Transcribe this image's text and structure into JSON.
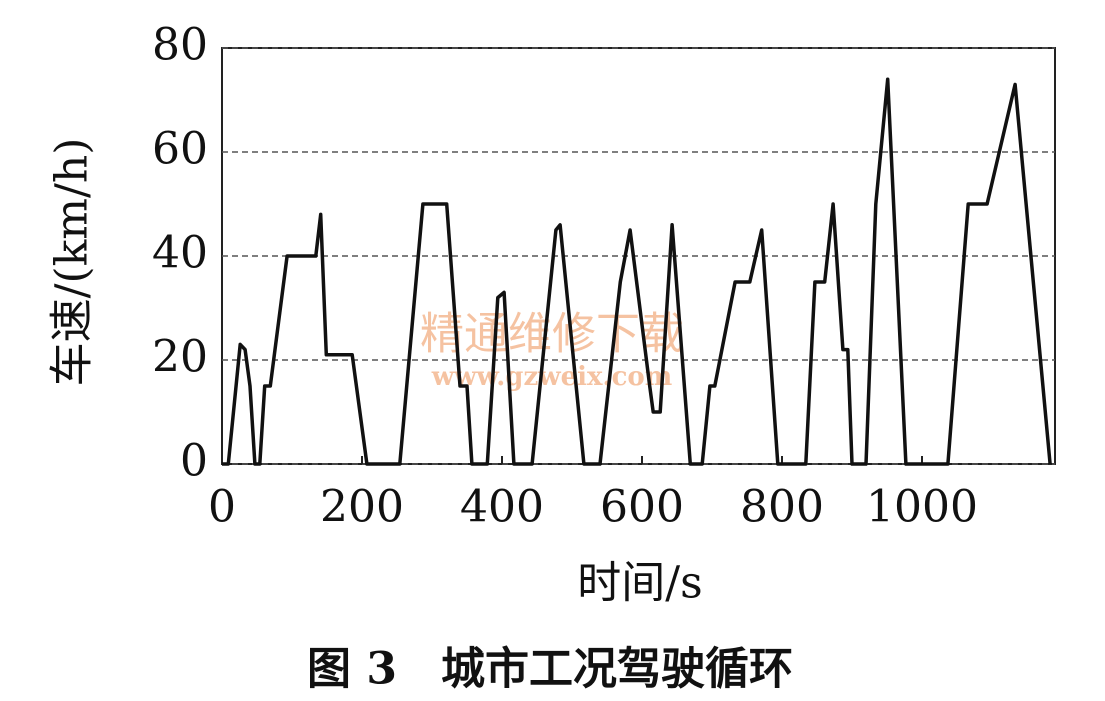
{
  "chart_data": {
    "type": "line",
    "title": "图 3　城市工况驾驶循环",
    "xlabel": "时间/s",
    "ylabel": "车速/(km/h)",
    "watermark": [
      "精通维修下载",
      "www.gzweix.com"
    ],
    "x": [
      0,
      9,
      26,
      33,
      40,
      47,
      54,
      61,
      69,
      93,
      134,
      141,
      149,
      186,
      207,
      254,
      287,
      321,
      340,
      350,
      357,
      379,
      394,
      403,
      417,
      443,
      477,
      483,
      517,
      540,
      569,
      583,
      611,
      616,
      626,
      643,
      669,
      686,
      697,
      704,
      733,
      754,
      771,
      794,
      834,
      847,
      861,
      873,
      887,
      894,
      900,
      920,
      934,
      951,
      977,
      1037,
      1066,
      1093,
      1133,
      1183
    ],
    "series": [
      {
        "name": "车速",
        "color": "#111111",
        "values": [
          0,
          0,
          23,
          22,
          15,
          0,
          0,
          15,
          15,
          40,
          40,
          48,
          21,
          21,
          0,
          0,
          50,
          50,
          15,
          15,
          0,
          0,
          32,
          33,
          0,
          0,
          45,
          46,
          0,
          0,
          35,
          45,
          15,
          10,
          10,
          46,
          0,
          0,
          15,
          15,
          35,
          35,
          45,
          0,
          0,
          35,
          35,
          50,
          22,
          22,
          0,
          0,
          50,
          74,
          0,
          0,
          50,
          50,
          73,
          0
        ]
      }
    ],
    "xlim": [
      0,
      1190
    ],
    "ylim": [
      0,
      80
    ],
    "xticks": [
      0,
      200,
      400,
      600,
      800,
      1000
    ],
    "yticks": [
      0,
      20,
      40,
      60,
      80
    ],
    "grid": true
  }
}
